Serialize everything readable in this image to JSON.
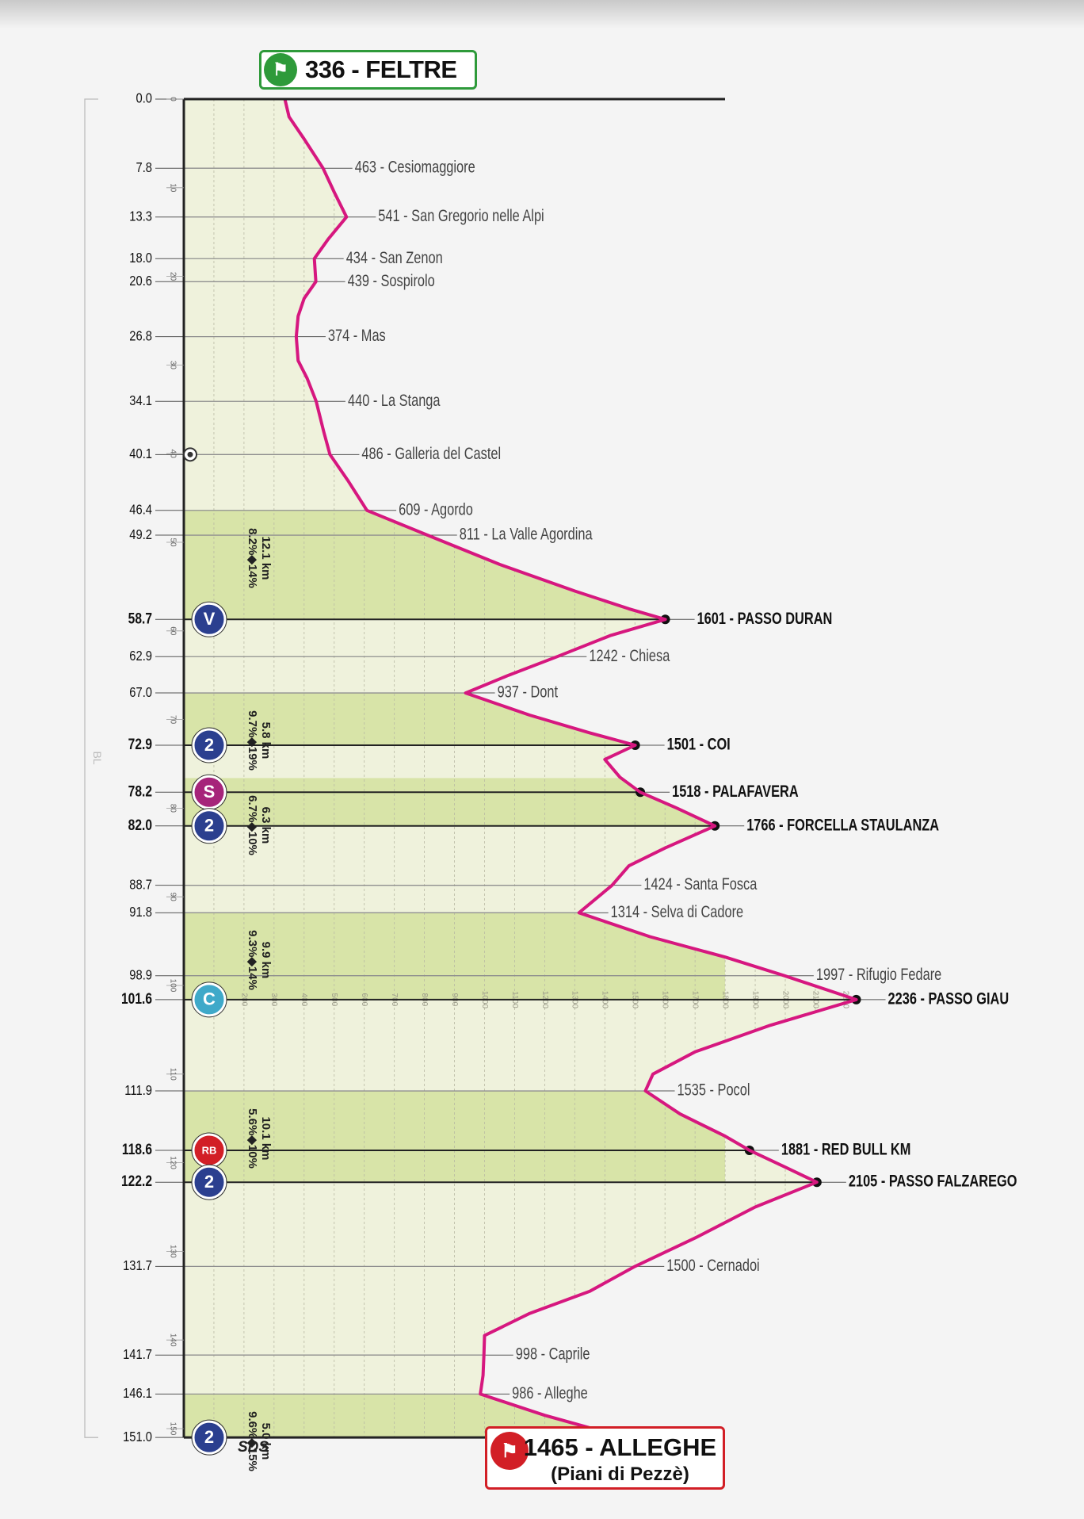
{
  "chart_data": {
    "type": "area",
    "title": "",
    "xlabel": "",
    "ylabel": "",
    "axis_orientation": "distance runs top-to-bottom, altitude left-to-right",
    "x_unit": "km",
    "y_unit": "m",
    "xlim": [
      0,
      151
    ],
    "ylim": [
      0,
      2300
    ],
    "vertical_axis_label": "BL",
    "altitude_tick_labels": [
      "100",
      "200",
      "300",
      "400",
      "500",
      "600",
      "700",
      "800",
      "900",
      "1000",
      "1100",
      "1200",
      "1300",
      "1400",
      "1500",
      "1600",
      "1700",
      "1800",
      "1900",
      "2000",
      "2100",
      "2200"
    ],
    "distance_tick_labels": [
      "0",
      "10",
      "20",
      "30",
      "40",
      "50",
      "60",
      "70",
      "80",
      "90",
      "100",
      "110",
      "120",
      "130",
      "140",
      "150"
    ],
    "footer_label": "SDS",
    "start": {
      "label": "336 - FELTRE",
      "km": 0.0,
      "alt": 336,
      "icon": "start-flag-icon",
      "color": "#2e9a3a"
    },
    "finish": {
      "label_main": "1465 - ALLEGHE",
      "label_sub": "(Piani di Pezzè)",
      "km": 151.0,
      "alt": 1465,
      "icon": "finish-flag-icon",
      "color": "#d21f26"
    },
    "profile": [
      [
        0.0,
        336
      ],
      [
        2.0,
        350
      ],
      [
        4.5,
        400
      ],
      [
        7.8,
        463
      ],
      [
        10.5,
        500
      ],
      [
        13.3,
        541
      ],
      [
        15.8,
        480
      ],
      [
        18.0,
        434
      ],
      [
        20.6,
        439
      ],
      [
        22.5,
        400
      ],
      [
        24.5,
        380
      ],
      [
        26.8,
        374
      ],
      [
        29.5,
        380
      ],
      [
        31.5,
        410
      ],
      [
        34.1,
        440
      ],
      [
        37.5,
        465
      ],
      [
        40.1,
        486
      ],
      [
        43.0,
        545
      ],
      [
        46.4,
        609
      ],
      [
        49.2,
        811
      ],
      [
        52.5,
        1050
      ],
      [
        55.5,
        1300
      ],
      [
        57.5,
        1480
      ],
      [
        58.7,
        1601
      ],
      [
        60.5,
        1420
      ],
      [
        62.9,
        1242
      ],
      [
        65.0,
        1080
      ],
      [
        67.0,
        937
      ],
      [
        69.5,
        1150
      ],
      [
        71.5,
        1350
      ],
      [
        72.9,
        1501
      ],
      [
        74.5,
        1400
      ],
      [
        76.5,
        1450
      ],
      [
        78.2,
        1518
      ],
      [
        80.0,
        1640
      ],
      [
        82.0,
        1766
      ],
      [
        84.5,
        1600
      ],
      [
        86.5,
        1480
      ],
      [
        88.7,
        1424
      ],
      [
        91.8,
        1314
      ],
      [
        94.5,
        1550
      ],
      [
        96.8,
        1800
      ],
      [
        98.9,
        1997
      ],
      [
        101.6,
        2236
      ],
      [
        104.5,
        1950
      ],
      [
        107.5,
        1700
      ],
      [
        110.0,
        1560
      ],
      [
        111.9,
        1535
      ],
      [
        114.5,
        1650
      ],
      [
        117.0,
        1800
      ],
      [
        118.6,
        1881
      ],
      [
        120.5,
        2000
      ],
      [
        122.2,
        2105
      ],
      [
        125.0,
        1900
      ],
      [
        128.5,
        1700
      ],
      [
        131.7,
        1500
      ],
      [
        134.5,
        1350
      ],
      [
        137.0,
        1150
      ],
      [
        139.5,
        1000
      ],
      [
        141.7,
        998
      ],
      [
        144.0,
        995
      ],
      [
        146.1,
        986
      ],
      [
        148.5,
        1200
      ],
      [
        151.0,
        1465
      ]
    ],
    "points": [
      {
        "km": "0.0",
        "label": ""
      },
      {
        "km": "7.8",
        "label": "463 - Cesiomaggiore"
      },
      {
        "km": "13.3",
        "label": "541 - San Gregorio nelle Alpi"
      },
      {
        "km": "18.0",
        "label": "434 - San Zenon"
      },
      {
        "km": "20.6",
        "label": "439 - Sospirolo"
      },
      {
        "km": "26.8",
        "label": "374 - Mas"
      },
      {
        "km": "34.1",
        "label": "440 - La Stanga"
      },
      {
        "km": "40.1",
        "label": "486 - Galleria del Castel",
        "icon": "sprint-icon"
      },
      {
        "km": "46.4",
        "label": "609 - Agordo"
      },
      {
        "km": "49.2",
        "label": "811 - La Valle Agordina"
      },
      {
        "km": "58.7",
        "label": "1601 - PASSO DURAN",
        "bold": true,
        "badge": "V",
        "badge_color": "#2b3f8f"
      },
      {
        "km": "62.9",
        "label": "1242 - Chiesa"
      },
      {
        "km": "67.0",
        "label": "937 - Dont"
      },
      {
        "km": "72.9",
        "label": "1501 - COI",
        "bold": true,
        "badge": "2",
        "badge_color": "#2b3f8f"
      },
      {
        "km": "78.2",
        "label": "1518 - PALAFAVERA",
        "bold": true,
        "badge": "S",
        "badge_color": "#a6247a"
      },
      {
        "km": "82.0",
        "label": "1766 - FORCELLA STAULANZA",
        "bold": true,
        "badge": "2",
        "badge_color": "#2b3f8f"
      },
      {
        "km": "88.7",
        "label": "1424 - Santa Fosca"
      },
      {
        "km": "91.8",
        "label": "1314 - Selva di Cadore"
      },
      {
        "km": "98.9",
        "label": "1997 - Rifugio Fedare"
      },
      {
        "km": "101.6",
        "label": "2236 - PASSO GIAU",
        "bold": true,
        "badge": "C",
        "badge_color": "#3fa9c9"
      },
      {
        "km": "111.9",
        "label": "1535 - Pocol"
      },
      {
        "km": "118.6",
        "label": "1881 - RED BULL KM",
        "bold": true,
        "badge": "RB",
        "badge_color": "#d21f26"
      },
      {
        "km": "122.2",
        "label": "2105 - PASSO FALZAREGO",
        "bold": true,
        "badge": "2",
        "badge_color": "#2b3f8f"
      },
      {
        "km": "131.7",
        "label": "1500 - Cernadoi"
      },
      {
        "km": "141.7",
        "label": "998 - Caprile"
      },
      {
        "km": "146.1",
        "label": "986 - Alleghe"
      },
      {
        "km": "151.0",
        "label": "",
        "badge": "2",
        "badge_color": "#2b3f8f"
      }
    ],
    "climbs": [
      {
        "start": 46.4,
        "end": 58.7,
        "length": "12.1 km",
        "gradient": "8.2%◆14%"
      },
      {
        "start": 67.0,
        "end": 72.9,
        "length": "5.8 km",
        "gradient": "9.7%◆19%"
      },
      {
        "start": 76.6,
        "end": 82.0,
        "length": "6.3 km",
        "gradient": "6.7%◆10%"
      },
      {
        "start": 91.8,
        "end": 101.6,
        "length": "9.9 km",
        "gradient": "9.3%◆14%"
      },
      {
        "start": 111.9,
        "end": 122.2,
        "length": "10.1 km",
        "gradient": "5.6%◆10%"
      },
      {
        "start": 146.1,
        "end": 151.0,
        "length": "5.0 km",
        "gradient": "9.6%◆15%"
      }
    ],
    "colors": {
      "profile_line": "#d6177f",
      "fill_light": "#eff2dc",
      "fill_climb": "#d8e4a8",
      "axis": "#222222"
    }
  }
}
